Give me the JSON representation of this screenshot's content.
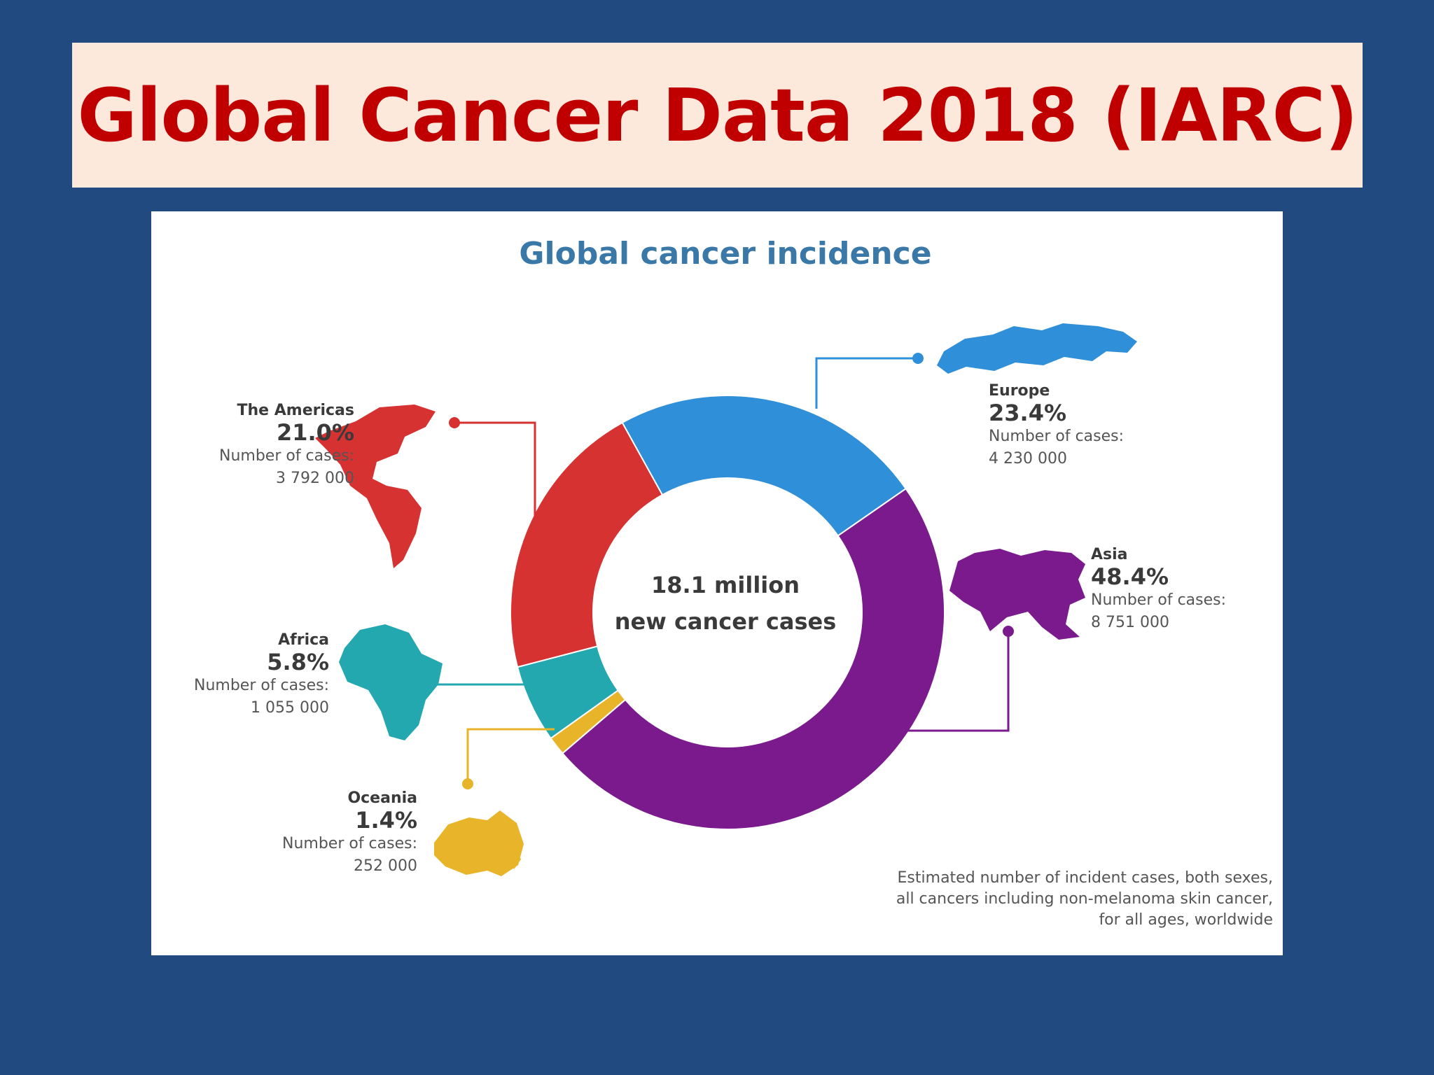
{
  "slide": {
    "title": "Global Cancer Data 2018 (IARC)",
    "background_color": "#214a80",
    "banner_color": "#fde8dc",
    "title_color": "#c00000"
  },
  "chart_data": {
    "type": "pie",
    "title": "Global cancer incidence",
    "center_line1": "18.1 million",
    "center_line2": "new cancer cases",
    "number_label": "Number of cases:",
    "footnote": [
      "Estimated number of incident cases, both sexes,",
      "all cancers including non-melanoma skin cancer,",
      "for all ages, worldwide"
    ],
    "slices": [
      {
        "name": "Europe",
        "percent": 23.4,
        "percent_label": "23.4%",
        "cases": "4 230 000",
        "color": "#2f8fd8",
        "icon": "europe-asia-map-icon"
      },
      {
        "name": "Asia",
        "percent": 48.4,
        "percent_label": "48.4%",
        "cases": "8 751 000",
        "color": "#7a1a8c",
        "icon": "asia-map-icon"
      },
      {
        "name": "Oceania",
        "percent": 1.4,
        "percent_label": "1.4%",
        "cases": "252 000",
        "color": "#e8b52a",
        "icon": "oceania-map-icon"
      },
      {
        "name": "Africa",
        "percent": 5.8,
        "percent_label": "5.8%",
        "cases": "1 055 000",
        "color": "#23a8b0",
        "icon": "africa-map-icon"
      },
      {
        "name": "The Americas",
        "percent": 21.0,
        "percent_label": "21.0%",
        "cases": "3 792 000",
        "color": "#d63232",
        "icon": "americas-map-icon"
      }
    ]
  }
}
